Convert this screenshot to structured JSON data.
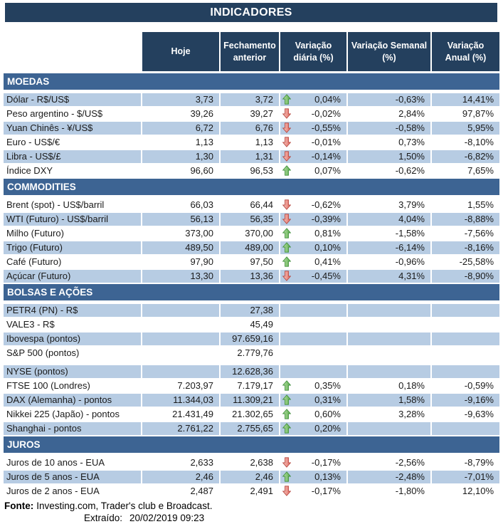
{
  "title": "INDICADORES",
  "colors": {
    "title_navy": "#24405e",
    "section_blue": "#3d6493",
    "row_shade": "#b7cce3",
    "arrow_up_green": "#57a84a",
    "arrow_down_red": "#e2675c",
    "text": "#1a1a1a"
  },
  "table": {
    "columns": [
      "Hoje",
      "Fechamento anterior",
      "Variação diária (%)",
      "Variação Semanal (%)",
      "Variação Anual (%)"
    ],
    "sections": [
      {
        "name": "MOEDAS",
        "rows": [
          {
            "label": "Dólar - R$/US$",
            "hoje": "3,73",
            "fech": "3,72",
            "arrow": "up",
            "var_d": "0,04%",
            "var_s": "-0,63%",
            "var_a": "14,41%",
            "shaded": true
          },
          {
            "label": "Peso argentino - $/US$",
            "hoje": "39,26",
            "fech": "39,27",
            "arrow": "down",
            "var_d": "-0,02%",
            "var_s": "2,84%",
            "var_a": "97,87%",
            "shaded": false
          },
          {
            "label": "Yuan Chinês - ¥/US$",
            "hoje": "6,72",
            "fech": "6,76",
            "arrow": "down",
            "var_d": "-0,55%",
            "var_s": "-0,58%",
            "var_a": "5,95%",
            "shaded": true
          },
          {
            "label": "Euro - US$/€",
            "hoje": "1,13",
            "fech": "1,13",
            "arrow": "down",
            "var_d": "-0,01%",
            "var_s": "0,73%",
            "var_a": "-8,10%",
            "shaded": false
          },
          {
            "label": "Libra - US$/£",
            "hoje": "1,30",
            "fech": "1,31",
            "arrow": "down",
            "var_d": "-0,14%",
            "var_s": "1,50%",
            "var_a": "-6,82%",
            "shaded": true
          },
          {
            "label": "Índice DXY",
            "hoje": "96,60",
            "fech": "96,53",
            "arrow": "up",
            "var_d": "0,07%",
            "var_s": "-0,62%",
            "var_a": "7,65%",
            "shaded": false
          }
        ]
      },
      {
        "name": "COMMODITIES",
        "rows": [
          {
            "label": "Brent (spot) - US$/barril",
            "hoje": "66,03",
            "fech": "66,44",
            "arrow": "down",
            "var_d": "-0,62%",
            "var_s": "3,79%",
            "var_a": "1,55%",
            "shaded": false
          },
          {
            "label": "WTI (Futuro) - US$/barril",
            "hoje": "56,13",
            "fech": "56,35",
            "arrow": "down",
            "var_d": "-0,39%",
            "var_s": "4,04%",
            "var_a": "-8,88%",
            "shaded": true
          },
          {
            "label": "Milho (Futuro)",
            "hoje": "373,00",
            "fech": "370,00",
            "arrow": "up",
            "var_d": "0,81%",
            "var_s": "-1,58%",
            "var_a": "-7,56%",
            "shaded": false
          },
          {
            "label": "Trigo (Futuro)",
            "hoje": "489,50",
            "fech": "489,00",
            "arrow": "up",
            "var_d": "0,10%",
            "var_s": "-6,14%",
            "var_a": "-8,16%",
            "shaded": true
          },
          {
            "label": "Café (Futuro)",
            "hoje": "97,90",
            "fech": "97,50",
            "arrow": "up",
            "var_d": "0,41%",
            "var_s": "-0,96%",
            "var_a": "-25,58%",
            "shaded": false
          },
          {
            "label": "Açúcar (Futuro)",
            "hoje": "13,30",
            "fech": "13,36",
            "arrow": "down",
            "var_d": "-0,45%",
            "var_s": "4,31%",
            "var_a": "-8,90%",
            "shaded": true
          }
        ]
      },
      {
        "name": "BOLSAS E AÇÕES",
        "rows": [
          {
            "label": "PETR4 (PN) - R$",
            "hoje": "",
            "fech": "27,38",
            "arrow": null,
            "var_d": "",
            "var_s": "",
            "var_a": "",
            "shaded": true
          },
          {
            "label": "VALE3 - R$",
            "hoje": "",
            "fech": "45,49",
            "arrow": null,
            "var_d": "",
            "var_s": "",
            "var_a": "",
            "shaded": false
          },
          {
            "label": "Ibovespa (pontos)",
            "hoje": "",
            "fech": "97.659,16",
            "arrow": null,
            "var_d": "",
            "var_s": "",
            "var_a": "",
            "shaded": true
          },
          {
            "label": "S&P 500 (pontos)",
            "hoje": "",
            "fech": "2.779,76",
            "arrow": null,
            "var_d": "",
            "var_s": "",
            "var_a": "",
            "shaded": false
          },
          {
            "spacer": true
          },
          {
            "label": "NYSE (pontos)",
            "hoje": "",
            "fech": "12.628,36",
            "arrow": null,
            "var_d": "",
            "var_s": "",
            "var_a": "",
            "shaded": true
          },
          {
            "label": "FTSE 100 (Londres)",
            "hoje": "7.203,97",
            "fech": "7.179,17",
            "arrow": "up",
            "var_d": "0,35%",
            "var_s": "0,18%",
            "var_a": "-0,59%",
            "shaded": false
          },
          {
            "label": "DAX (Alemanha) - pontos",
            "hoje": "11.344,03",
            "fech": "11.309,21",
            "arrow": "up",
            "var_d": "0,31%",
            "var_s": "1,58%",
            "var_a": "-9,16%",
            "shaded": true
          },
          {
            "label": "Nikkei 225 (Japão) - pontos",
            "hoje": "21.431,49",
            "fech": "21.302,65",
            "arrow": "up",
            "var_d": "0,60%",
            "var_s": "3,28%",
            "var_a": "-9,63%",
            "shaded": false
          },
          {
            "label": "Shanghai - pontos",
            "hoje": "2.761,22",
            "fech": "2.755,65",
            "arrow": "up",
            "var_d": "0,20%",
            "var_s": "",
            "var_a": "",
            "shaded": true
          }
        ]
      },
      {
        "name": "JUROS",
        "rows": [
          {
            "label": "Juros de 10 anos - EUA",
            "hoje": "2,633",
            "fech": "2,638",
            "arrow": "down",
            "var_d": "-0,17%",
            "var_s": "-2,56%",
            "var_a": "-8,79%",
            "shaded": false
          },
          {
            "label": "Juros de 5 anos - EUA",
            "hoje": "2,46",
            "fech": "2,46",
            "arrow": "up",
            "var_d": "0,13%",
            "var_s": "-2,48%",
            "var_a": "-7,01%",
            "shaded": true
          },
          {
            "label": "Juros de 2 anos - EUA",
            "hoje": "2,487",
            "fech": "2,491",
            "arrow": "down",
            "var_d": "-0,17%",
            "var_s": "-1,80%",
            "var_a": "12,10%",
            "shaded": false
          }
        ]
      }
    ]
  },
  "footer": {
    "fonte_label": "Fonte:",
    "fonte_text": "Investing.com, Trader's club e Broadcast.",
    "extraido_label": "Extraído:",
    "extraido_value": "20/02/2019 09:23"
  }
}
